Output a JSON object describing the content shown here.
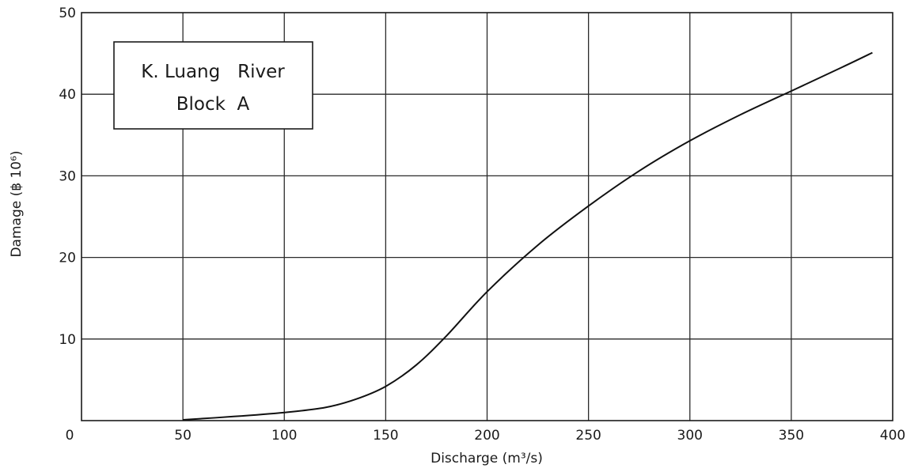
{
  "chart_data": {
    "type": "line",
    "title": "",
    "xlabel": "Discharge (m³/s)",
    "ylabel": "Damage (฿ 10⁶)",
    "xlim": [
      0,
      400
    ],
    "ylim": [
      0,
      50
    ],
    "xticks": [
      0,
      50,
      100,
      150,
      200,
      250,
      300,
      350,
      400
    ],
    "yticks": [
      10,
      20,
      30,
      40,
      50
    ],
    "grid": true,
    "legend_box": {
      "line1": "K. Luang   River",
      "line2": "Block  A",
      "placement": "top-left"
    },
    "series": [
      {
        "x": [
          50,
          75,
          100,
          120,
          135,
          150,
          165,
          180,
          200,
          225,
          250,
          275,
          300,
          325,
          350,
          375,
          390
        ],
        "values": [
          0.1,
          0.5,
          1.0,
          1.6,
          2.6,
          4.2,
          6.8,
          10.4,
          15.8,
          21.5,
          26.3,
          30.6,
          34.3,
          37.5,
          40.4,
          43.3,
          45.1
        ]
      }
    ]
  }
}
